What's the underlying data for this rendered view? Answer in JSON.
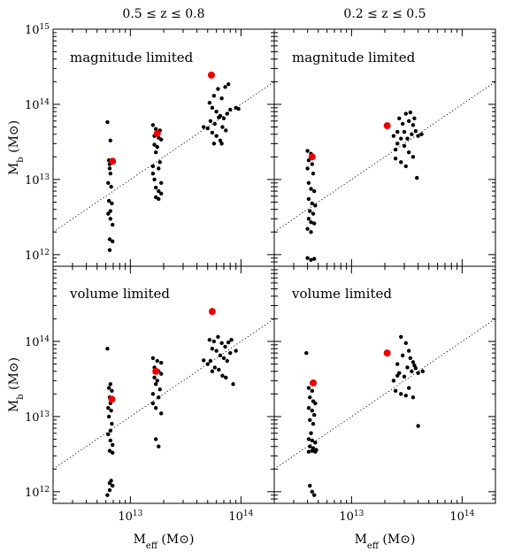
{
  "figure": {
    "column_titles": [
      "0.5 ≤ z ≤ 0.8",
      "0.2 ≤ z ≤ 0.5"
    ],
    "row_labels": [
      "magnitude limited",
      "volume limited"
    ],
    "xlabel": {
      "main": "M",
      "sub": "eff",
      "unit": " (M",
      "unit_end": ")"
    },
    "ylabel": {
      "main": "M",
      "sub": "b",
      "unit": " (M",
      "unit_end": ")"
    },
    "y_ticks": [
      {
        "value": 1000000000000.0,
        "base": "10",
        "exp": "12"
      },
      {
        "value": 10000000000000.0,
        "base": "10",
        "exp": "13"
      },
      {
        "value": 100000000000000.0,
        "base": "10",
        "exp": "14"
      },
      {
        "value": 1000000000000000.0,
        "base": "10",
        "exp": "15"
      }
    ],
    "x_ticks": [
      {
        "value": 10000000000000.0,
        "base": "10",
        "exp": "13"
      },
      {
        "value": 100000000000000.0,
        "base": "10",
        "exp": "14"
      }
    ]
  },
  "chart_data": [
    {
      "type": "scatter",
      "panel": "top-left",
      "label": "magnitude limited",
      "xscale": "log",
      "yscale": "log",
      "xlim": [
        2000000000000.0,
        200000000000000.0
      ],
      "ylim": [
        700000000000.0,
        1000000000000000.0
      ],
      "reference_line": "dotted, slope 1",
      "black_points": [
        [
          6200000000000.0,
          58000000000000.0
        ],
        [
          6600000000000.0,
          33000000000000.0
        ],
        [
          6400000000000.0,
          18000000000000.0
        ],
        [
          6500000000000.0,
          16000000000000.0
        ],
        [
          6800000000000.0,
          17000000000000.0
        ],
        [
          6500000000000.0,
          14000000000000.0
        ],
        [
          6600000000000.0,
          12000000000000.0
        ],
        [
          6300000000000.0,
          9000000000000.0
        ],
        [
          6700000000000.0,
          8000000000000.0
        ],
        [
          6400000000000.0,
          5200000000000.0
        ],
        [
          6800000000000.0,
          4800000000000.0
        ],
        [
          6600000000000.0,
          3800000000000.0
        ],
        [
          6300000000000.0,
          3500000000000.0
        ],
        [
          6600000000000.0,
          3000000000000.0
        ],
        [
          6900000000000.0,
          2500000000000.0
        ],
        [
          6500000000000.0,
          1600000000000.0
        ],
        [
          6900000000000.0,
          1500000000000.0
        ],
        [
          6500000000000.0,
          1150000000000.0
        ],
        [
          16000000000000.0,
          53000000000000.0
        ],
        [
          17000000000000.0,
          47000000000000.0
        ],
        [
          18500000000000.0,
          45000000000000.0
        ],
        [
          16500000000000.0,
          38000000000000.0
        ],
        [
          18000000000000.0,
          36000000000000.0
        ],
        [
          19000000000000.0,
          34000000000000.0
        ],
        [
          16500000000000.0,
          29000000000000.0
        ],
        [
          17500000000000.0,
          27000000000000.0
        ],
        [
          17000000000000.0,
          23000000000000.0
        ],
        [
          18500000000000.0,
          17000000000000.0
        ],
        [
          16000000000000.0,
          15000000000000.0
        ],
        [
          18000000000000.0,
          14000000000000.0
        ],
        [
          16000000000000.0,
          12000000000000.0
        ],
        [
          16500000000000.0,
          10000000000000.0
        ],
        [
          19000000000000.0,
          9000000000000.0
        ],
        [
          17000000000000.0,
          7800000000000.0
        ],
        [
          18000000000000.0,
          7000000000000.0
        ],
        [
          17000000000000.0,
          5800000000000.0
        ],
        [
          18000000000000.0,
          5500000000000.0
        ],
        [
          19000000000000.0,
          6500000000000.0
        ],
        [
          52000000000000.0,
          105000000000000.0
        ],
        [
          57000000000000.0,
          130000000000000.0
        ],
        [
          62000000000000.0,
          160000000000000.0
        ],
        [
          67000000000000.0,
          120000000000000.0
        ],
        [
          72000000000000.0,
          170000000000000.0
        ],
        [
          77000000000000.0,
          185000000000000.0
        ],
        [
          55000000000000.0,
          90000000000000.0
        ],
        [
          60000000000000.0,
          80000000000000.0
        ],
        [
          65000000000000.0,
          70000000000000.0
        ],
        [
          70000000000000.0,
          65000000000000.0
        ],
        [
          75000000000000.0,
          75000000000000.0
        ],
        [
          80000000000000.0,
          85000000000000.0
        ],
        [
          90000000000000.0,
          90000000000000.0
        ],
        [
          53000000000000.0,
          60000000000000.0
        ],
        [
          58000000000000.0,
          55000000000000.0
        ],
        [
          63000000000000.0,
          67000000000000.0
        ],
        [
          68000000000000.0,
          50000000000000.0
        ],
        [
          73000000000000.0,
          45000000000000.0
        ],
        [
          50000000000000.0,
          48000000000000.0
        ],
        [
          55000000000000.0,
          42000000000000.0
        ],
        [
          60000000000000.0,
          38000000000000.0
        ],
        [
          65000000000000.0,
          33000000000000.0
        ],
        [
          57000000000000.0,
          30000000000000.0
        ],
        [
          67000000000000.0,
          30000000000000.0
        ],
        [
          46000000000000.0,
          50000000000000.0
        ],
        [
          95000000000000.0,
          87000000000000.0
        ]
      ],
      "red_points": [
        [
          54000000000000.0,
          245000000000000.0
        ],
        [
          17500000000000.0,
          41000000000000.0
        ],
        [
          6900000000000.0,
          17500000000000.0
        ]
      ]
    },
    {
      "type": "scatter",
      "panel": "top-right",
      "label": "magnitude limited",
      "xscale": "log",
      "yscale": "log",
      "xlim": [
        2000000000000.0,
        200000000000000.0
      ],
      "ylim": [
        700000000000.0,
        1000000000000000.0
      ],
      "reference_line": "dotted, slope 1",
      "black_points": [
        [
          4000000000000.0,
          24000000000000.0
        ],
        [
          4300000000000.0,
          22000000000000.0
        ],
        [
          4100000000000.0,
          18000000000000.0
        ],
        [
          4400000000000.0,
          16000000000000.0
        ],
        [
          4000000000000.0,
          14000000000000.0
        ],
        [
          4500000000000.0,
          12000000000000.0
        ],
        [
          4100000000000.0,
          9000000000000.0
        ],
        [
          4300000000000.0,
          7500000000000.0
        ],
        [
          4600000000000.0,
          7000000000000.0
        ],
        [
          4100000000000.0,
          5500000000000.0
        ],
        [
          4400000000000.0,
          4800000000000.0
        ],
        [
          4700000000000.0,
          4500000000000.0
        ],
        [
          4200000000000.0,
          3800000000000.0
        ],
        [
          4500000000000.0,
          3500000000000.0
        ],
        [
          4100000000000.0,
          3000000000000.0
        ],
        [
          4300000000000.0,
          2700000000000.0
        ],
        [
          4600000000000.0,
          2600000000000.0
        ],
        [
          4000000000000.0,
          2200000000000.0
        ],
        [
          4300000000000.0,
          2000000000000.0
        ],
        [
          4000000000000.0,
          900000000000.0
        ],
        [
          4300000000000.0,
          850000000000.0
        ],
        [
          4600000000000.0,
          880000000000.0
        ],
        [
          25000000000000.0,
          25000000000000.0
        ],
        [
          28000000000000.0,
          35000000000000.0
        ],
        [
          30000000000000.0,
          28000000000000.0
        ],
        [
          32000000000000.0,
          35000000000000.0
        ],
        [
          35000000000000.0,
          40000000000000.0
        ],
        [
          26000000000000.0,
          43000000000000.0
        ],
        [
          29000000000000.0,
          55000000000000.0
        ],
        [
          31000000000000.0,
          75000000000000.0
        ],
        [
          33000000000000.0,
          60000000000000.0
        ],
        [
          36000000000000.0,
          53000000000000.0
        ],
        [
          38000000000000.0,
          44000000000000.0
        ],
        [
          40000000000000.0,
          38000000000000.0
        ],
        [
          27000000000000.0,
          65000000000000.0
        ],
        [
          34000000000000.0,
          78000000000000.0
        ],
        [
          37000000000000.0,
          65000000000000.0
        ],
        [
          25000000000000.0,
          19000000000000.0
        ],
        [
          28000000000000.0,
          17000000000000.0
        ],
        [
          31000000000000.0,
          15000000000000.0
        ],
        [
          33000000000000.0,
          23000000000000.0
        ],
        [
          36000000000000.0,
          20000000000000.0
        ],
        [
          39000000000000.0,
          10500000000000.0
        ],
        [
          26000000000000.0,
          30000000000000.0
        ],
        [
          43000000000000.0,
          40000000000000.0
        ],
        [
          30000000000000.0,
          43000000000000.0
        ],
        [
          24000000000000.0,
          38000000000000.0
        ]
      ],
      "red_points": [
        [
          21000000000000.0,
          52000000000000.0
        ],
        [
          4400000000000.0,
          20000000000000.0
        ]
      ]
    },
    {
      "type": "scatter",
      "panel": "bottom-left",
      "label": "volume limited",
      "xscale": "log",
      "yscale": "log",
      "xlim": [
        2000000000000.0,
        200000000000000.0
      ],
      "ylim": [
        700000000000.0,
        1000000000000000.0
      ],
      "reference_line": "dotted, slope 1",
      "black_points": [
        [
          6200000000000.0,
          80000000000000.0
        ],
        [
          6600000000000.0,
          27000000000000.0
        ],
        [
          6400000000000.0,
          24000000000000.0
        ],
        [
          6800000000000.0,
          22000000000000.0
        ],
        [
          6500000000000.0,
          18000000000000.0
        ],
        [
          6600000000000.0,
          15000000000000.0
        ],
        [
          6300000000000.0,
          13000000000000.0
        ],
        [
          6700000000000.0,
          12000000000000.0
        ],
        [
          6400000000000.0,
          10000000000000.0
        ],
        [
          6800000000000.0,
          8000000000000.0
        ],
        [
          6600000000000.0,
          6500000000000.0
        ],
        [
          6300000000000.0,
          5800000000000.0
        ],
        [
          6600000000000.0,
          4800000000000.0
        ],
        [
          6900000000000.0,
          4200000000000.0
        ],
        [
          6500000000000.0,
          3500000000000.0
        ],
        [
          6900000000000.0,
          3300000000000.0
        ],
        [
          6700000000000.0,
          1400000000000.0
        ],
        [
          6500000000000.0,
          1300000000000.0
        ],
        [
          6900000000000.0,
          1200000000000.0
        ],
        [
          6500000000000.0,
          1050000000000.0
        ],
        [
          6200000000000.0,
          900000000000.0
        ],
        [
          16000000000000.0,
          60000000000000.0
        ],
        [
          17500000000000.0,
          55000000000000.0
        ],
        [
          19000000000000.0,
          52000000000000.0
        ],
        [
          16500000000000.0,
          45000000000000.0
        ],
        [
          18000000000000.0,
          40000000000000.0
        ],
        [
          19000000000000.0,
          37000000000000.0
        ],
        [
          16500000000000.0,
          33000000000000.0
        ],
        [
          17500000000000.0,
          30000000000000.0
        ],
        [
          17000000000000.0,
          27000000000000.0
        ],
        [
          18500000000000.0,
          23000000000000.0
        ],
        [
          16000000000000.0,
          20000000000000.0
        ],
        [
          18000000000000.0,
          18000000000000.0
        ],
        [
          16000000000000.0,
          15000000000000.0
        ],
        [
          17000000000000.0,
          13000000000000.0
        ],
        [
          19000000000000.0,
          11000000000000.0
        ],
        [
          17000000000000.0,
          5000000000000.0
        ],
        [
          18000000000000.0,
          4000000000000.0
        ],
        [
          52000000000000.0,
          105000000000000.0
        ],
        [
          57000000000000.0,
          100000000000000.0
        ],
        [
          62000000000000.0,
          115000000000000.0
        ],
        [
          67000000000000.0,
          95000000000000.0
        ],
        [
          72000000000000.0,
          85000000000000.0
        ],
        [
          77000000000000.0,
          97000000000000.0
        ],
        [
          82000000000000.0,
          105000000000000.0
        ],
        [
          55000000000000.0,
          80000000000000.0
        ],
        [
          60000000000000.0,
          75000000000000.0
        ],
        [
          65000000000000.0,
          65000000000000.0
        ],
        [
          70000000000000.0,
          60000000000000.0
        ],
        [
          75000000000000.0,
          55000000000000.0
        ],
        [
          80000000000000.0,
          70000000000000.0
        ],
        [
          90000000000000.0,
          75000000000000.0
        ],
        [
          53000000000000.0,
          55000000000000.0
        ],
        [
          58000000000000.0,
          45000000000000.0
        ],
        [
          63000000000000.0,
          42000000000000.0
        ],
        [
          68000000000000.0,
          35000000000000.0
        ],
        [
          73000000000000.0,
          33000000000000.0
        ],
        [
          50000000000000.0,
          50000000000000.0
        ],
        [
          55000000000000.0,
          40000000000000.0
        ],
        [
          85000000000000.0,
          27000000000000.0
        ],
        [
          46000000000000.0,
          56000000000000.0
        ]
      ],
      "red_points": [
        [
          55000000000000.0,
          250000000000000.0
        ],
        [
          17000000000000.0,
          40000000000000.0
        ],
        [
          6800000000000.0,
          17000000000000.0
        ]
      ]
    },
    {
      "type": "scatter",
      "panel": "bottom-right",
      "label": "volume limited",
      "xscale": "log",
      "yscale": "log",
      "xlim": [
        2000000000000.0,
        200000000000000.0
      ],
      "ylim": [
        700000000000.0,
        1000000000000000.0
      ],
      "reference_line": "dotted, slope 1",
      "black_points": [
        [
          3900000000000.0,
          70000000000000.0
        ],
        [
          4100000000000.0,
          24000000000000.0
        ],
        [
          4400000000000.0,
          22000000000000.0
        ],
        [
          4200000000000.0,
          18000000000000.0
        ],
        [
          4500000000000.0,
          16000000000000.0
        ],
        [
          4700000000000.0,
          15000000000000.0
        ],
        [
          4100000000000.0,
          13000000000000.0
        ],
        [
          4400000000000.0,
          12000000000000.0
        ],
        [
          4600000000000.0,
          10500000000000.0
        ],
        [
          4200000000000.0,
          9000000000000.0
        ],
        [
          4500000000000.0,
          8000000000000.0
        ],
        [
          4300000000000.0,
          6000000000000.0
        ],
        [
          4100000000000.0,
          5000000000000.0
        ],
        [
          4400000000000.0,
          4800000000000.0
        ],
        [
          4700000000000.0,
          4500000000000.0
        ],
        [
          4200000000000.0,
          4000000000000.0
        ],
        [
          4500000000000.0,
          3800000000000.0
        ],
        [
          4800000000000.0,
          3600000000000.0
        ],
        [
          4100000000000.0,
          3400000000000.0
        ],
        [
          4400000000000.0,
          3500000000000.0
        ],
        [
          4700000000000.0,
          3400000000000.0
        ],
        [
          4200000000000.0,
          1200000000000.0
        ],
        [
          4400000000000.0,
          1000000000000.0
        ],
        [
          4600000000000.0,
          900000000000.0
        ],
        [
          24000000000000.0,
          30000000000000.0
        ],
        [
          27000000000000.0,
          38000000000000.0
        ],
        [
          30000000000000.0,
          34000000000000.0
        ],
        [
          32000000000000.0,
          45000000000000.0
        ],
        [
          35000000000000.0,
          40000000000000.0
        ],
        [
          26000000000000.0,
          50000000000000.0
        ],
        [
          29000000000000.0,
          65000000000000.0
        ],
        [
          31000000000000.0,
          95000000000000.0
        ],
        [
          33000000000000.0,
          75000000000000.0
        ],
        [
          36000000000000.0,
          53000000000000.0
        ],
        [
          38000000000000.0,
          44000000000000.0
        ],
        [
          40000000000000.0,
          38000000000000.0
        ],
        [
          28000000000000.0,
          115000000000000.0
        ],
        [
          34000000000000.0,
          60000000000000.0
        ],
        [
          37000000000000.0,
          48000000000000.0
        ],
        [
          25000000000000.0,
          22000000000000.0
        ],
        [
          28000000000000.0,
          20000000000000.0
        ],
        [
          31000000000000.0,
          19000000000000.0
        ],
        [
          33000000000000.0,
          24000000000000.0
        ],
        [
          36000000000000.0,
          18000000000000.0
        ],
        [
          40000000000000.0,
          7500000000000.0
        ],
        [
          26000000000000.0,
          35000000000000.0
        ],
        [
          44000000000000.0,
          40000000000000.0
        ]
      ],
      "red_points": [
        [
          21000000000000.0,
          70000000000000.0
        ],
        [
          4500000000000.0,
          28000000000000.0
        ]
      ]
    }
  ]
}
